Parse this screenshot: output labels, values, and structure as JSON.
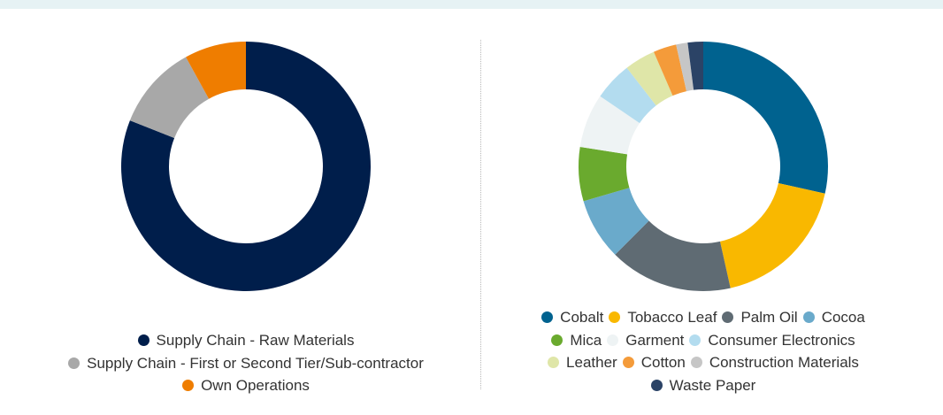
{
  "chart_data": [
    {
      "type": "donut",
      "categories": [
        "Supply Chain - Raw Materials",
        "Supply Chain - First or Second Tier/Sub-contractor",
        "Own Operations"
      ],
      "values": [
        81,
        11,
        8
      ],
      "colors": [
        "#001e4b",
        "#a8a8a8",
        "#ef7d00"
      ]
    },
    {
      "type": "donut",
      "categories": [
        "Cobalt",
        "Tobacco Leaf",
        "Palm Oil",
        "Cocoa",
        "Mica",
        "Garment",
        "Consumer Electronics",
        "Leather",
        "Cotton",
        "Construction Materials",
        "Waste Paper"
      ],
      "values": [
        28.5,
        18,
        16,
        8,
        7,
        7,
        5,
        4,
        3,
        1.5,
        2
      ],
      "colors": [
        "#00628f",
        "#f9b800",
        "#5f6b73",
        "#6aaacb",
        "#6aaa2e",
        "#eef3f4",
        "#b3dcef",
        "#dfe6a8",
        "#f49b3a",
        "#c6c6c6",
        "#2b4366"
      ]
    }
  ]
}
